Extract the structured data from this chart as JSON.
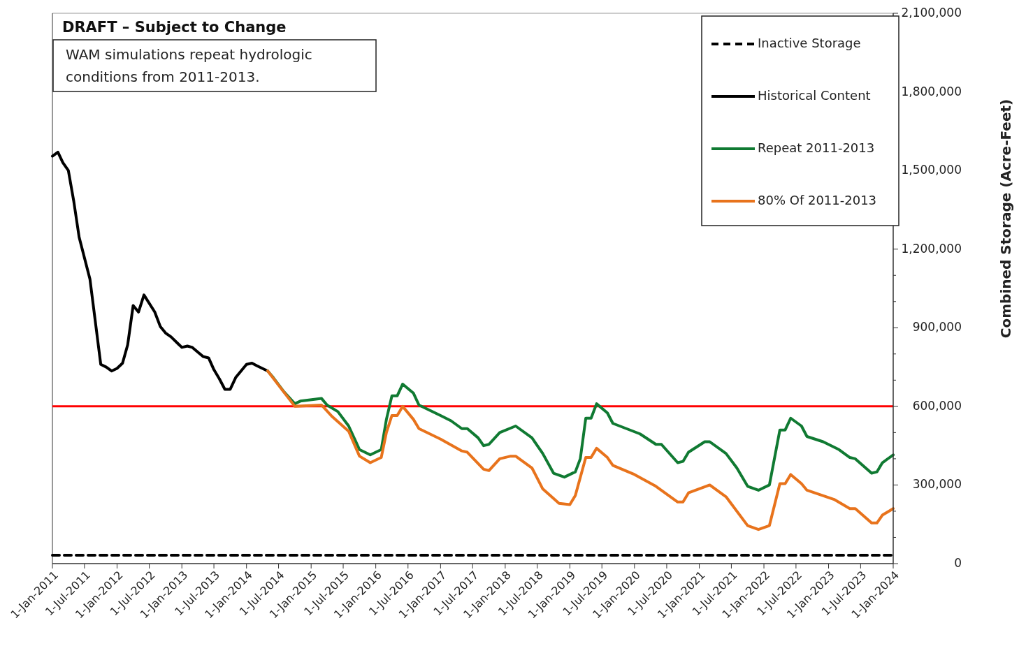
{
  "chart_data": {
    "type": "line",
    "title": "DRAFT – Subject to Change",
    "ylabel": "Combined Storage (Acre-Feet)",
    "annotations": [
      "WAM simulations repeat hydrologic conditions from 2011-2013."
    ],
    "xlim": [
      "2011-01-01",
      "2024-01-01"
    ],
    "xticks": [
      {
        "value": "2011-01-01",
        "label": "1-Jan-2011"
      },
      {
        "value": "2011-07-01",
        "label": "1-Jul-2011"
      },
      {
        "value": "2012-01-01",
        "label": "1-Jan-2012"
      },
      {
        "value": "2012-07-01",
        "label": "1-Jul-2012"
      },
      {
        "value": "2013-01-01",
        "label": "1-Jan-2013"
      },
      {
        "value": "2013-07-01",
        "label": "1-Jul-2013"
      },
      {
        "value": "2014-01-01",
        "label": "1-Jan-2014"
      },
      {
        "value": "2014-07-01",
        "label": "1-Jul-2014"
      },
      {
        "value": "2015-01-01",
        "label": "1-Jan-2015"
      },
      {
        "value": "2015-07-01",
        "label": "1-Jul-2015"
      },
      {
        "value": "2016-01-01",
        "label": "1-Jan-2016"
      },
      {
        "value": "2016-07-01",
        "label": "1-Jul-2016"
      },
      {
        "value": "2017-01-01",
        "label": "1-Jan-2017"
      },
      {
        "value": "2017-07-01",
        "label": "1-Jul-2017"
      },
      {
        "value": "2018-01-01",
        "label": "1-Jan-2018"
      },
      {
        "value": "2018-07-01",
        "label": "1-Jul-2018"
      },
      {
        "value": "2019-01-01",
        "label": "1-Jan-2019"
      },
      {
        "value": "2019-07-01",
        "label": "1-Jul-2019"
      },
      {
        "value": "2020-01-01",
        "label": "1-Jan-2020"
      },
      {
        "value": "2020-07-01",
        "label": "1-Jul-2020"
      },
      {
        "value": "2021-01-01",
        "label": "1-Jan-2021"
      },
      {
        "value": "2021-07-01",
        "label": "1-Jul-2021"
      },
      {
        "value": "2022-01-01",
        "label": "1-Jan-2022"
      },
      {
        "value": "2022-07-01",
        "label": "1-Jul-2022"
      },
      {
        "value": "2023-01-01",
        "label": "1-Jan-2023"
      },
      {
        "value": "2023-07-01",
        "label": "1-Jul-2023"
      },
      {
        "value": "2024-01-01",
        "label": "1-Jan-2024"
      }
    ],
    "ylim": [
      0,
      2100000
    ],
    "yticks": [
      {
        "value": 0,
        "label": "0"
      },
      {
        "value": 100000,
        "label": null
      },
      {
        "value": 200000,
        "label": null
      },
      {
        "value": 300000,
        "label": "300,000"
      },
      {
        "value": 400000,
        "label": null
      },
      {
        "value": 500000,
        "label": null
      },
      {
        "value": 600000,
        "label": "600,000"
      },
      {
        "value": 700000,
        "label": null
      },
      {
        "value": 800000,
        "label": null
      },
      {
        "value": 900000,
        "label": "900,000"
      },
      {
        "value": 1000000,
        "label": null
      },
      {
        "value": 1100000,
        "label": null
      },
      {
        "value": 1200000,
        "label": "1,200,000"
      },
      {
        "value": 1300000,
        "label": null
      },
      {
        "value": 1400000,
        "label": null
      },
      {
        "value": 1500000,
        "label": "1,500,000"
      },
      {
        "value": 1600000,
        "label": null
      },
      {
        "value": 1700000,
        "label": null
      },
      {
        "value": 1800000,
        "label": "1,800,000"
      },
      {
        "value": 1900000,
        "label": null
      },
      {
        "value": 2000000,
        "label": null
      },
      {
        "value": 2100000,
        "label": "2,100,000"
      }
    ],
    "grid": false,
    "legend": "top right",
    "marker": "none",
    "ref_lines": [
      {
        "axis": "y",
        "value": 600000,
        "color": "#ff0000"
      }
    ],
    "series": [
      {
        "name": "Inactive Storage",
        "color": "#000000",
        "line_style": "dashed",
        "x": [
          "2011-01",
          "2024-01"
        ],
        "values": [
          32000,
          32000
        ]
      },
      {
        "name": "Historical Content",
        "color": "#000000",
        "x": [
          "2011-01",
          "2011-02",
          "2011-03",
          "2011-04",
          "2011-05",
          "2011-06",
          "2011-08",
          "2011-10",
          "2011-11",
          "2011-12",
          "2012-01",
          "2012-02",
          "2012-03",
          "2012-04",
          "2012-05",
          "2012-06",
          "2012-08",
          "2012-09",
          "2012-10",
          "2012-11",
          "2013-01",
          "2013-02",
          "2013-03",
          "2013-05",
          "2013-06",
          "2013-07",
          "2013-08",
          "2013-09",
          "2013-10",
          "2013-11",
          "2014-01",
          "2014-02",
          "2014-03",
          "2014-05"
        ],
        "values": [
          1555000,
          1570000,
          1530000,
          1500000,
          1385000,
          1245000,
          1085000,
          760000,
          750000,
          735000,
          745000,
          765000,
          835000,
          985000,
          960000,
          1025000,
          960000,
          905000,
          880000,
          865000,
          825000,
          830000,
          825000,
          790000,
          785000,
          740000,
          705000,
          665000,
          665000,
          710000,
          760000,
          765000,
          755000,
          735000
        ]
      },
      {
        "name": "Repeat 2011-2013",
        "color": "#107a32",
        "x": [
          "2014-05",
          "2014-06",
          "2014-08",
          "2014-10",
          "2014-11",
          "2015-03",
          "2015-04",
          "2015-06",
          "2015-08",
          "2015-10",
          "2015-12",
          "2016-02",
          "2016-03",
          "2016-04",
          "2016-05",
          "2016-06",
          "2016-08",
          "2016-09",
          "2016-11",
          "2017-01",
          "2017-03",
          "2017-05",
          "2017-06",
          "2017-08",
          "2017-09",
          "2017-10",
          "2017-12",
          "2018-03",
          "2018-06",
          "2018-08",
          "2018-10",
          "2018-12",
          "2019-02",
          "2019-03",
          "2019-04",
          "2019-05",
          "2019-06",
          "2019-08",
          "2019-09",
          "2020-02",
          "2020-05",
          "2020-06",
          "2020-09",
          "2020-10",
          "2020-11",
          "2021-02",
          "2021-03",
          "2021-06",
          "2021-08",
          "2021-10",
          "2021-12",
          "2022-02",
          "2022-04",
          "2022-05",
          "2022-06",
          "2022-08",
          "2022-09",
          "2022-12",
          "2023-03",
          "2023-05",
          "2023-06",
          "2023-09",
          "2023-10",
          "2023-11",
          "2024-01"
        ],
        "values": [
          735000,
          710000,
          655000,
          610000,
          620000,
          630000,
          605000,
          580000,
          525000,
          435000,
          415000,
          435000,
          550000,
          640000,
          640000,
          685000,
          650000,
          605000,
          585000,
          565000,
          545000,
          515000,
          515000,
          480000,
          450000,
          455000,
          500000,
          525000,
          480000,
          420000,
          345000,
          330000,
          350000,
          400000,
          555000,
          555000,
          610000,
          575000,
          535000,
          495000,
          455000,
          455000,
          385000,
          390000,
          425000,
          465000,
          465000,
          420000,
          365000,
          295000,
          280000,
          300000,
          510000,
          510000,
          555000,
          525000,
          485000,
          465000,
          435000,
          405000,
          400000,
          345000,
          350000,
          385000,
          415000
        ]
      },
      {
        "name": "80% Of 2011-2013",
        "color": "#e8731c",
        "x": [
          "2014-05",
          "2014-10",
          "2015-03",
          "2015-05",
          "2015-08",
          "2015-10",
          "2015-12",
          "2016-02",
          "2016-03",
          "2016-04",
          "2016-05",
          "2016-06",
          "2016-08",
          "2016-09",
          "2017-01",
          "2017-05",
          "2017-06",
          "2017-09",
          "2017-10",
          "2017-12",
          "2018-02",
          "2018-03",
          "2018-06",
          "2018-08",
          "2018-11",
          "2019-01",
          "2019-02",
          "2019-04",
          "2019-05",
          "2019-06",
          "2019-08",
          "2019-09",
          "2020-01",
          "2020-05",
          "2020-09",
          "2020-10",
          "2020-11",
          "2021-03",
          "2021-06",
          "2021-10",
          "2021-12",
          "2022-02",
          "2022-04",
          "2022-05",
          "2022-06",
          "2022-08",
          "2022-09",
          "2023-02",
          "2023-05",
          "2023-06",
          "2023-09",
          "2023-10",
          "2023-11",
          "2024-01"
        ],
        "values": [
          735000,
          600000,
          605000,
          560000,
          505000,
          410000,
          385000,
          405000,
          500000,
          565000,
          565000,
          600000,
          550000,
          515000,
          475000,
          430000,
          425000,
          360000,
          355000,
          400000,
          410000,
          410000,
          365000,
          285000,
          230000,
          225000,
          260000,
          405000,
          405000,
          440000,
          405000,
          375000,
          340000,
          295000,
          235000,
          235000,
          270000,
          300000,
          255000,
          145000,
          130000,
          145000,
          305000,
          305000,
          340000,
          305000,
          280000,
          245000,
          210000,
          210000,
          155000,
          155000,
          185000,
          210000
        ]
      }
    ]
  }
}
